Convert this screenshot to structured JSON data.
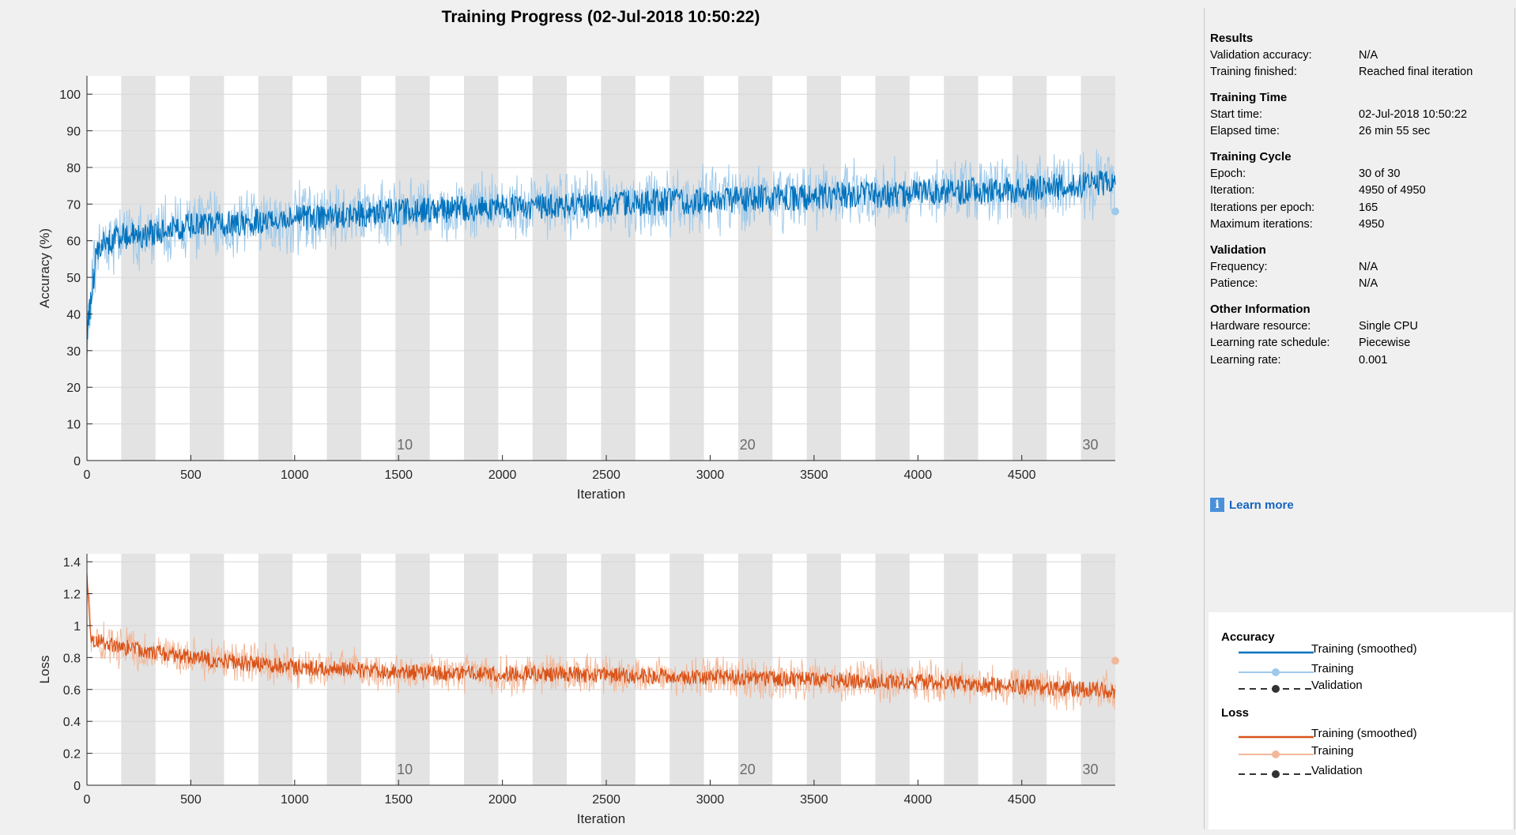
{
  "title": "Training Progress (02-Jul-2018 10:50:22)",
  "chart_data": [
    {
      "type": "line",
      "title": "",
      "xlabel": "Iteration",
      "ylabel": "Accuracy (%)",
      "xlim": [
        0,
        4950
      ],
      "ylim": [
        0,
        105
      ],
      "x_ticks": [
        0,
        500,
        1000,
        1500,
        2000,
        2500,
        3000,
        3500,
        4000,
        4500
      ],
      "y_ticks": [
        0,
        10,
        20,
        30,
        40,
        50,
        60,
        70,
        80,
        90,
        100
      ],
      "epoch_labels": [
        {
          "epoch": 10,
          "iteration": 1530
        },
        {
          "epoch": 20,
          "iteration": 3180
        },
        {
          "epoch": 30,
          "iteration": 4830
        }
      ],
      "iterations_per_epoch": 165,
      "series": [
        {
          "name": "Training (smoothed)",
          "color": "#0072bd",
          "x": [
            0,
            50,
            150,
            300,
            500,
            800,
            1000,
            1500,
            2000,
            2500,
            3000,
            3500,
            4000,
            4500,
            4950
          ],
          "values": [
            35,
            58,
            61,
            62,
            64,
            65,
            66,
            68,
            69,
            70,
            71,
            72,
            73,
            74,
            76
          ]
        },
        {
          "name": "Training",
          "color": "#9ec9ea",
          "final_value": 68
        }
      ]
    },
    {
      "type": "line",
      "title": "",
      "xlabel": "Iteration",
      "ylabel": "Loss",
      "xlim": [
        0,
        4950
      ],
      "ylim": [
        0,
        1.45
      ],
      "x_ticks": [
        0,
        500,
        1000,
        1500,
        2000,
        2500,
        3000,
        3500,
        4000,
        4500
      ],
      "y_ticks": [
        0,
        0.2,
        0.4,
        0.6,
        0.8,
        1,
        1.2,
        1.4
      ],
      "y_tick_labels": [
        "0",
        "0.2",
        "0.4",
        "0.6",
        "0.8",
        "1",
        "1.2",
        "1.4"
      ],
      "epoch_labels": [
        {
          "epoch": 10,
          "iteration": 1530
        },
        {
          "epoch": 20,
          "iteration": 3180
        },
        {
          "epoch": 30,
          "iteration": 4830
        }
      ],
      "iterations_per_epoch": 165,
      "series": [
        {
          "name": "Training (smoothed)",
          "color": "#d95319",
          "x": [
            0,
            20,
            100,
            300,
            500,
            800,
            1000,
            1500,
            2000,
            2500,
            3000,
            3500,
            4000,
            4500,
            4950
          ],
          "values": [
            1.35,
            0.92,
            0.88,
            0.84,
            0.8,
            0.76,
            0.74,
            0.71,
            0.7,
            0.69,
            0.68,
            0.66,
            0.65,
            0.62,
            0.59
          ]
        },
        {
          "name": "Training",
          "color": "#f2b89a",
          "final_value": 0.78
        }
      ]
    }
  ],
  "panel": {
    "sections": [
      {
        "title": "Results",
        "rows": [
          {
            "label": "Validation accuracy:",
            "value": "N/A"
          },
          {
            "label": "Training finished:",
            "value": "Reached final iteration"
          }
        ]
      },
      {
        "title": "Training Time",
        "rows": [
          {
            "label": "Start time:",
            "value": "02-Jul-2018 10:50:22"
          },
          {
            "label": "Elapsed time:",
            "value": "26 min 55 sec"
          }
        ]
      },
      {
        "title": "Training Cycle",
        "rows": [
          {
            "label": "Epoch:",
            "value": "30 of 30"
          },
          {
            "label": "Iteration:",
            "value": "4950 of 4950"
          },
          {
            "label": "Iterations per epoch:",
            "value": "165"
          },
          {
            "label": "Maximum iterations:",
            "value": "4950"
          }
        ]
      },
      {
        "title": "Validation",
        "rows": [
          {
            "label": "Frequency:",
            "value": "N/A"
          },
          {
            "label": "Patience:",
            "value": "N/A"
          }
        ]
      },
      {
        "title": "Other Information",
        "rows": [
          {
            "label": "Hardware resource:",
            "value": "Single CPU"
          },
          {
            "label": "Learning rate schedule:",
            "value": "Piecewise"
          },
          {
            "label": "Learning rate:",
            "value": "0.001"
          }
        ]
      }
    ],
    "learn_more": "Learn more",
    "info_icon_glyph": "i"
  },
  "legend": {
    "accuracy": {
      "title": "Accuracy",
      "items": [
        "Training (smoothed)",
        "Training",
        "Validation"
      ]
    },
    "loss": {
      "title": "Loss",
      "items": [
        "Training (smoothed)",
        "Training",
        "Validation"
      ]
    },
    "colors": {
      "acc_smooth": "#0072bd",
      "acc_raw": "#9ec9ea",
      "loss_smooth": "#d95319",
      "loss_raw": "#f2b89a",
      "validation": "#333333"
    }
  }
}
